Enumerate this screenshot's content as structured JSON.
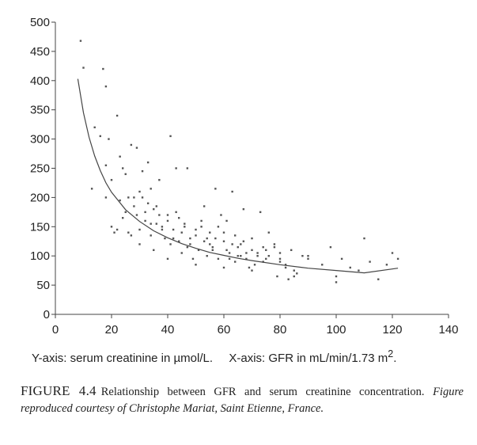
{
  "chart_data": {
    "type": "scatter",
    "title": "",
    "xlabel": "X-axis: GFR in mL/min/1.73 m",
    "xlabel_superscript": "2",
    "xlabel_suffix": ".",
    "ylabel": "Y-axis: serum creatinine in µmol/L.",
    "xlim": [
      0,
      140
    ],
    "ylim": [
      0,
      500
    ],
    "x_ticks": [
      0,
      20,
      40,
      60,
      80,
      100,
      120,
      140
    ],
    "y_ticks": [
      0,
      50,
      100,
      150,
      200,
      250,
      300,
      350,
      400,
      450,
      500
    ],
    "grid": false,
    "series": [
      {
        "name": "patients",
        "kind": "points",
        "color": "#555555",
        "x": [
          9,
          10,
          13,
          14,
          16,
          17,
          18,
          18,
          19,
          20,
          22,
          23,
          23,
          24,
          25,
          25,
          26,
          27,
          28,
          29,
          30,
          30,
          31,
          32,
          33,
          34,
          34,
          35,
          36,
          37,
          38,
          39,
          40,
          41,
          42,
          43,
          44,
          45,
          46,
          47,
          48,
          50,
          51,
          52,
          53,
          54,
          55,
          56,
          57,
          58,
          60,
          61,
          62,
          63,
          64,
          65,
          66,
          67,
          68,
          70,
          71,
          72,
          74,
          75,
          76,
          78,
          80,
          82,
          84,
          86,
          88,
          90,
          95,
          98,
          100,
          102,
          105,
          108,
          112,
          115,
          118,
          122,
          20,
          24,
          26,
          28,
          32,
          34,
          36,
          38,
          40,
          42,
          44,
          46,
          48,
          50,
          52,
          54,
          56,
          58,
          60,
          62,
          64,
          66,
          68,
          70,
          72,
          74,
          76,
          78,
          80,
          82,
          85,
          90,
          30,
          35,
          40,
          45,
          50,
          55,
          60,
          65,
          70,
          75,
          80,
          85,
          22,
          27,
          31,
          37,
          43,
          49,
          53,
          59,
          63,
          69,
          73,
          79,
          83,
          100,
          110,
          120,
          18,
          21,
          29,
          33,
          41,
          47,
          57,
          61,
          67
        ],
        "y": [
          468,
          422,
          215,
          320,
          305,
          420,
          255,
          390,
          300,
          230,
          340,
          195,
          270,
          250,
          175,
          240,
          200,
          290,
          185,
          170,
          210,
          145,
          245,
          160,
          190,
          215,
          135,
          180,
          155,
          170,
          150,
          130,
          160,
          120,
          145,
          175,
          125,
          140,
          155,
          115,
          130,
          135,
          110,
          150,
          125,
          100,
          140,
          115,
          130,
          95,
          125,
          110,
          105,
          120,
          90,
          115,
          100,
          125,
          95,
          110,
          85,
          105,
          115,
          95,
          100,
          120,
          90,
          80,
          110,
          70,
          100,
          95,
          85,
          115,
          65,
          95,
          80,
          75,
          90,
          60,
          85,
          95,
          150,
          165,
          140,
          200,
          175,
          155,
          185,
          145,
          170,
          130,
          165,
          150,
          120,
          145,
          160,
          130,
          110,
          150,
          140,
          95,
          135,
          120,
          105,
          130,
          100,
          90,
          140,
          115,
          105,
          85,
          75,
          100,
          120,
          110,
          95,
          105,
          85,
          120,
          80,
          100,
          75,
          110,
          95,
          65,
          145,
          135,
          200,
          230,
          250,
          95,
          185,
          170,
          210,
          80,
          175,
          65,
          60,
          55,
          130,
          105,
          200,
          140,
          285,
          260,
          305,
          250,
          215,
          160,
          180
        ]
      },
      {
        "name": "fitted curve",
        "kind": "curve",
        "color": "#444444",
        "x": [
          8,
          10,
          12,
          14,
          16,
          18,
          20,
          25,
          30,
          35,
          40,
          45,
          50,
          55,
          60,
          65,
          70,
          80,
          90,
          100,
          110,
          122
        ],
        "y": [
          403,
          345,
          303,
          271,
          246,
          225,
          209,
          179,
          159,
          143,
          131,
          121,
          113,
          106,
          101,
          96,
          92,
          85,
          79,
          75,
          71,
          79
        ]
      }
    ]
  },
  "caption": {
    "label": "FIGURE 4.4",
    "text": "Relationship between GFR and serum creatinine concentration.",
    "credit": "Figure reproduced courtesy of Christophe Mariat, Saint Etienne, France."
  }
}
